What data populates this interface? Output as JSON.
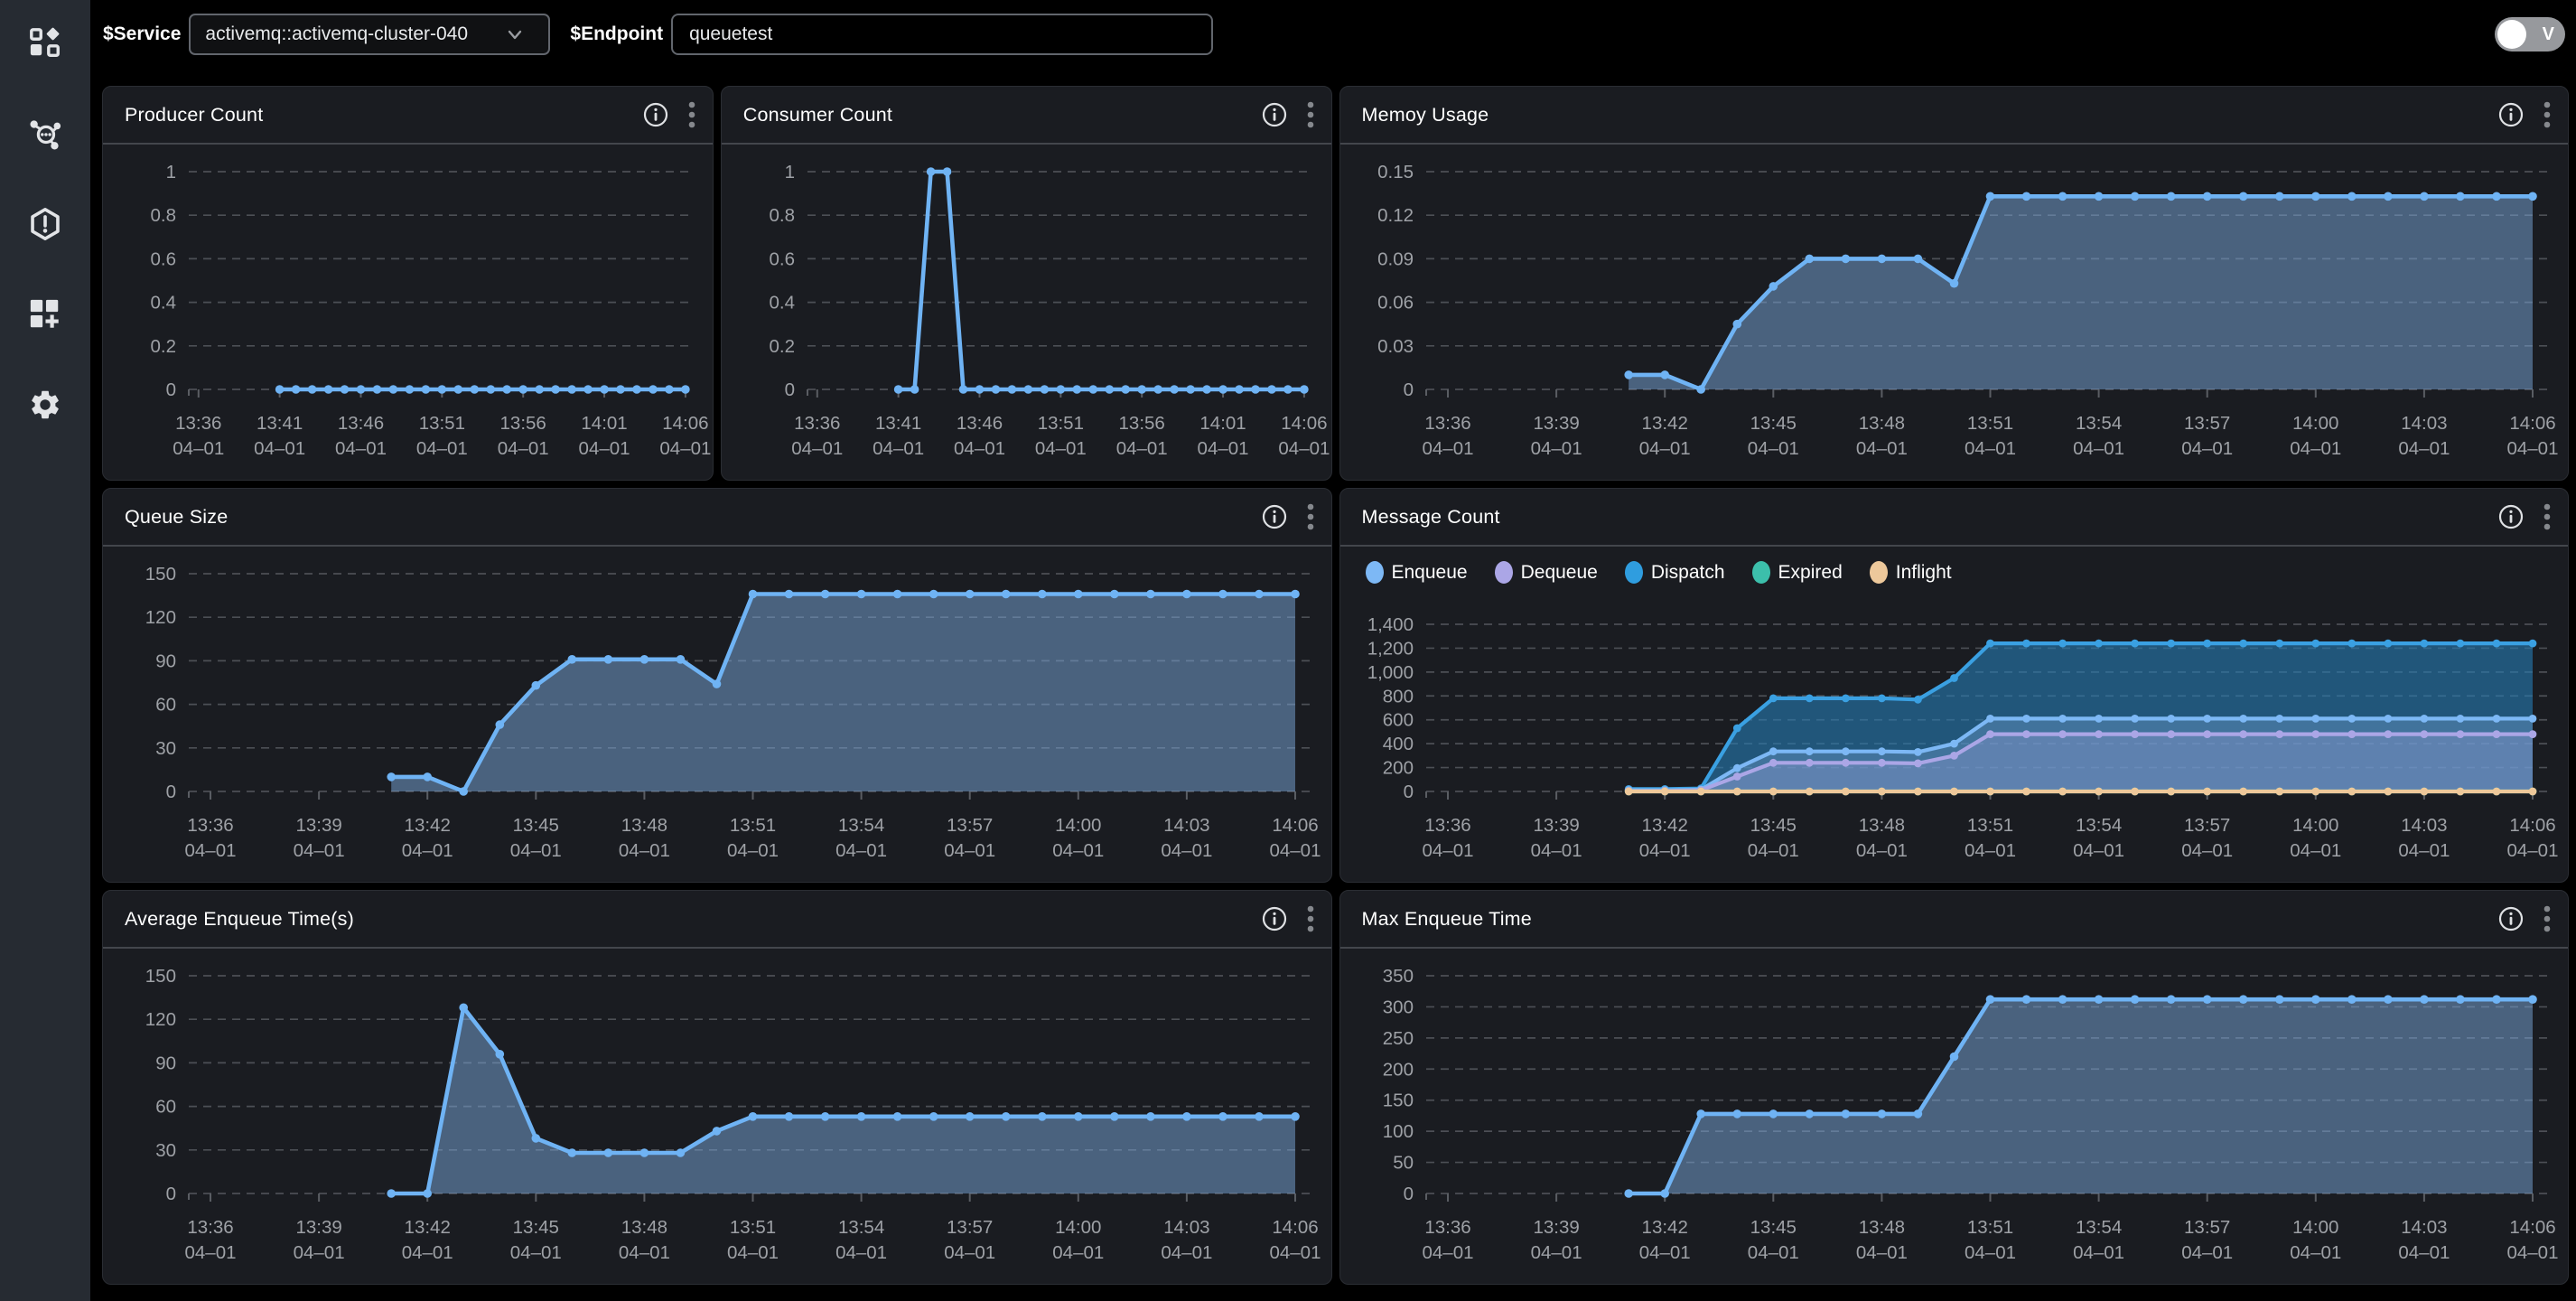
{
  "topbar": {
    "service_label": "$Service",
    "service_value": "activemq::activemq-cluster-040",
    "endpoint_label": "$Endpoint",
    "endpoint_value": "queuetest",
    "toggle_label": "V"
  },
  "sidebar": {
    "items": [
      {
        "icon": "apps-icon"
      },
      {
        "icon": "topology-icon"
      },
      {
        "icon": "alert-hexagon-icon"
      },
      {
        "icon": "add-panel-icon"
      },
      {
        "icon": "settings-gear-icon"
      }
    ]
  },
  "colors": {
    "page_bg": "#000000",
    "sidebar_bg": "#262b32",
    "panel_bg": "#1a1c21",
    "axis_text": "#9ea1a6",
    "grid": "#4c4f55",
    "tick": "#5a5d63",
    "line_blue": "#6fb3f4",
    "fill_blue": "rgba(122,168,220,0.5)",
    "icon": "#e2e4e7",
    "kebab": "#85888d",
    "info": "#dfe1e4"
  },
  "axis": {
    "date_label": "04–01",
    "x_start_minute": 821,
    "x_step_minutes": 1,
    "x_domain": [
      815.4,
      846.45
    ],
    "ticks_5min": {
      "minutes": [
        816,
        821,
        826,
        831,
        836,
        841,
        846
      ],
      "labels": [
        "13:36",
        "13:41",
        "13:46",
        "13:51",
        "13:56",
        "14:01",
        "14:06"
      ]
    },
    "ticks_3min": {
      "minutes": [
        816,
        819,
        822,
        825,
        828,
        831,
        834,
        837,
        840,
        843,
        846
      ],
      "labels": [
        "13:36",
        "13:39",
        "13:42",
        "13:45",
        "13:48",
        "13:51",
        "13:54",
        "13:57",
        "14:00",
        "14:03",
        "14:06"
      ]
    }
  },
  "panel_icons": {
    "info": "info-circle-icon",
    "menu": "kebab-menu-icon"
  },
  "panels": [
    {
      "id": "producer-count",
      "title": "Producer Count",
      "span": 1,
      "chart_data": {
        "type": "line",
        "x_start": "13:41",
        "tick_set": "ticks_5min",
        "y_ticks": {
          "values": [
            0,
            0.2,
            0.4,
            0.6,
            0.8,
            1
          ],
          "labels": [
            "0",
            "0.2",
            "0.4",
            "0.6",
            "0.8",
            "1"
          ]
        },
        "series": [
          {
            "name": "Producer Count",
            "color": "#6fb3f4",
            "fill": null,
            "values": [
              0,
              0,
              0,
              0,
              0,
              0,
              0,
              0,
              0,
              0,
              0,
              0,
              0,
              0,
              0,
              0,
              0,
              0,
              0,
              0,
              0,
              0,
              0,
              0,
              0,
              0
            ]
          }
        ]
      }
    },
    {
      "id": "consumer-count",
      "title": "Consumer Count",
      "span": 1,
      "chart_data": {
        "type": "line",
        "x_start": "13:41",
        "tick_set": "ticks_5min",
        "y_ticks": {
          "values": [
            0,
            0.2,
            0.4,
            0.6,
            0.8,
            1
          ],
          "labels": [
            "0",
            "0.2",
            "0.4",
            "0.6",
            "0.8",
            "1"
          ]
        },
        "series": [
          {
            "name": "Consumer Count",
            "color": "#6fb3f4",
            "fill": null,
            "values": [
              0,
              0,
              1,
              1,
              0,
              0,
              0,
              0,
              0,
              0,
              0,
              0,
              0,
              0,
              0,
              0,
              0,
              0,
              0,
              0,
              0,
              0,
              0,
              0,
              0,
              0
            ]
          }
        ]
      }
    },
    {
      "id": "memory-usage",
      "title": "Memoy Usage",
      "span": 2,
      "chart_data": {
        "type": "area",
        "x_start": "13:41",
        "tick_set": "ticks_3min",
        "y_ticks": {
          "values": [
            0,
            0.03,
            0.06,
            0.09,
            0.12,
            0.15
          ],
          "labels": [
            "0",
            "0.03",
            "0.06",
            "0.09",
            "0.12",
            "0.15"
          ]
        },
        "series": [
          {
            "name": "Memory Usage",
            "color": "#6fb3f4",
            "fill": "rgba(122,168,220,0.5)",
            "values": [
              0.01,
              0.01,
              0,
              0.045,
              0.071,
              0.09,
              0.09,
              0.09,
              0.09,
              0.073,
              0.133,
              0.133,
              0.133,
              0.133,
              0.133,
              0.133,
              0.133,
              0.133,
              0.133,
              0.133,
              0.133,
              0.133,
              0.133,
              0.133,
              0.133,
              0.133
            ]
          }
        ]
      }
    },
    {
      "id": "queue-size",
      "title": "Queue Size",
      "span": 2,
      "chart_data": {
        "type": "area",
        "x_start": "13:41",
        "tick_set": "ticks_3min",
        "y_ticks": {
          "values": [
            0,
            30,
            60,
            90,
            120,
            150
          ],
          "labels": [
            "0",
            "30",
            "60",
            "90",
            "120",
            "150"
          ]
        },
        "series": [
          {
            "name": "Queue Size",
            "color": "#6fb3f4",
            "fill": "rgba(122,168,220,0.5)",
            "values": [
              10,
              10,
              0,
              46,
              73,
              91,
              91,
              91,
              91,
              74,
              136,
              136,
              136,
              136,
              136,
              136,
              136,
              136,
              136,
              136,
              136,
              136,
              136,
              136,
              136,
              136
            ]
          }
        ]
      }
    },
    {
      "id": "message-count",
      "title": "Message Count",
      "span": 2,
      "chart_data": {
        "type": "area",
        "x_start": "13:41",
        "tick_set": "ticks_3min",
        "y_ticks": {
          "values": [
            0,
            200,
            400,
            600,
            800,
            1000,
            1200,
            1400
          ],
          "labels": [
            "0",
            "200",
            "400",
            "600",
            "800",
            "1,000",
            "1,200",
            "1,400"
          ]
        },
        "legend": [
          {
            "label": "Enqueue",
            "color": "#7db8f5"
          },
          {
            "label": "Dequeue",
            "color": "#aba6e6"
          },
          {
            "label": "Dispatch",
            "color": "#2f9ddf"
          },
          {
            "label": "Expired",
            "color": "#3cbfab"
          },
          {
            "label": "Inflight",
            "color": "#edc89b"
          }
        ],
        "series": [
          {
            "name": "Dispatch",
            "color": "#3aa0e2",
            "fill": "rgba(38,122,178,0.62)",
            "values": [
              20,
              20,
              25,
              530,
              780,
              780,
              780,
              780,
              770,
              950,
              1240,
              1240,
              1240,
              1240,
              1240,
              1240,
              1240,
              1240,
              1240,
              1240,
              1240,
              1240,
              1240,
              1240,
              1240,
              1240
            ]
          },
          {
            "name": "Enqueue",
            "color": "#7db8f5",
            "fill": "rgba(125,170,220,0.35)",
            "values": [
              10,
              10,
              15,
              195,
              335,
              335,
              335,
              335,
              330,
              400,
              610,
              610,
              610,
              610,
              610,
              610,
              610,
              610,
              610,
              610,
              610,
              610,
              610,
              610,
              610,
              610
            ]
          },
          {
            "name": "Dequeue",
            "color": "#aba6e6",
            "fill": "rgba(171,166,228,0.28)",
            "values": [
              5,
              5,
              10,
              125,
              240,
              240,
              240,
              240,
              235,
              300,
              480,
              480,
              480,
              480,
              480,
              480,
              480,
              480,
              480,
              480,
              480,
              480,
              480,
              480,
              480,
              480
            ]
          },
          {
            "name": "Expired",
            "color": "#3fc0ad",
            "fill": null,
            "values": [
              0,
              0,
              0,
              0,
              0,
              0,
              0,
              0,
              0,
              0,
              0,
              0,
              0,
              0,
              0,
              0,
              0,
              0,
              0,
              0,
              0,
              0,
              0,
              0,
              0,
              0
            ]
          },
          {
            "name": "Inflight",
            "color": "#eec89a",
            "fill": null,
            "values": [
              0,
              0,
              0,
              0,
              0,
              0,
              0,
              0,
              0,
              0,
              0,
              0,
              0,
              0,
              0,
              0,
              0,
              0,
              0,
              0,
              0,
              0,
              0,
              0,
              0,
              0
            ]
          }
        ]
      }
    },
    {
      "id": "avg-enqueue-time",
      "title": "Average Enqueue Time(s)",
      "span": 2,
      "chart_data": {
        "type": "area",
        "x_start": "13:41",
        "tick_set": "ticks_3min",
        "y_ticks": {
          "values": [
            0,
            30,
            60,
            90,
            120,
            150
          ],
          "labels": [
            "0",
            "30",
            "60",
            "90",
            "120",
            "150"
          ]
        },
        "series": [
          {
            "name": "Average Enqueue Time",
            "color": "#6fb3f4",
            "fill": "rgba(122,168,220,0.5)",
            "values": [
              0,
              0,
              128,
              96,
              38,
              28,
              28,
              28,
              28,
              43,
              53,
              53,
              53,
              53,
              53,
              53,
              53,
              53,
              53,
              53,
              53,
              53,
              53,
              53,
              53,
              53
            ]
          }
        ]
      }
    },
    {
      "id": "max-enqueue-time",
      "title": "Max Enqueue Time",
      "span": 2,
      "chart_data": {
        "type": "area",
        "x_start": "13:41",
        "tick_set": "ticks_3min",
        "y_ticks": {
          "values": [
            0,
            50,
            100,
            150,
            200,
            250,
            300,
            350
          ],
          "labels": [
            "0",
            "50",
            "100",
            "150",
            "200",
            "250",
            "300",
            "350"
          ]
        },
        "series": [
          {
            "name": "Max Enqueue Time",
            "color": "#6fb3f4",
            "fill": "rgba(122,168,220,0.5)",
            "values": [
              0,
              0,
              128,
              128,
              128,
              128,
              128,
              128,
              128,
              220,
              312,
              312,
              312,
              312,
              312,
              312,
              312,
              312,
              312,
              312,
              312,
              312,
              312,
              312,
              312,
              312
            ]
          }
        ]
      }
    }
  ]
}
